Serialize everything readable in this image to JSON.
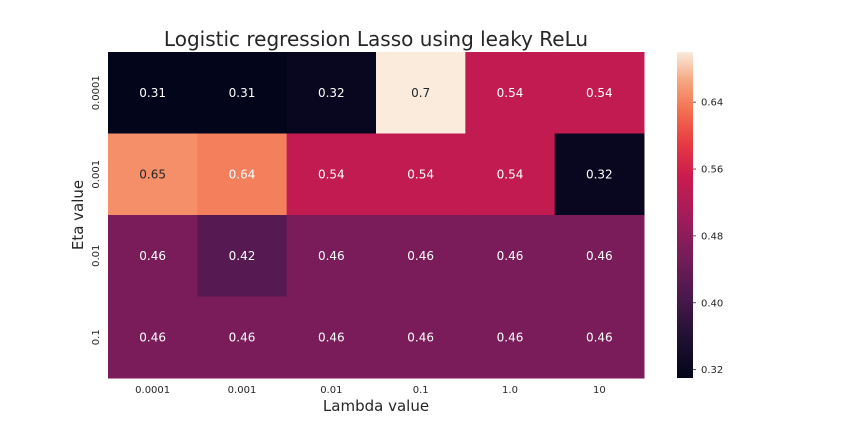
{
  "chart_data": {
    "type": "heatmap",
    "title": "Logistic regression Lasso using leaky ReLu",
    "xlabel": "Lambda value",
    "ylabel": "Eta value",
    "x_categories": [
      "0.0001",
      "0.001",
      "0.01",
      "0.1",
      "1.0",
      "10"
    ],
    "y_categories": [
      "0.0001",
      "0.001",
      "0.01",
      "0.1"
    ],
    "values": [
      [
        0.31,
        0.31,
        0.32,
        0.7,
        0.54,
        0.54
      ],
      [
        0.65,
        0.64,
        0.54,
        0.54,
        0.54,
        0.32
      ],
      [
        0.46,
        0.42,
        0.46,
        0.46,
        0.46,
        0.46
      ],
      [
        0.46,
        0.46,
        0.46,
        0.46,
        0.46,
        0.46
      ]
    ],
    "cell_labels": [
      [
        "0.31",
        "0.31",
        "0.32",
        "0.7",
        "0.54",
        "0.54"
      ],
      [
        "0.65",
        "0.64",
        "0.54",
        "0.54",
        "0.54",
        "0.32"
      ],
      [
        "0.46",
        "0.42",
        "0.46",
        "0.46",
        "0.46",
        "0.46"
      ],
      [
        "0.46",
        "0.46",
        "0.46",
        "0.46",
        "0.46",
        "0.46"
      ]
    ],
    "colormap": "rocket",
    "colorbar": {
      "range": [
        0.31,
        0.7
      ],
      "ticks": [
        0.32,
        0.4,
        0.48,
        0.56,
        0.64
      ],
      "tick_labels": [
        "0.32",
        "0.40",
        "0.48",
        "0.56",
        "0.64"
      ]
    },
    "grid": false,
    "legend": "colorbar-right"
  }
}
